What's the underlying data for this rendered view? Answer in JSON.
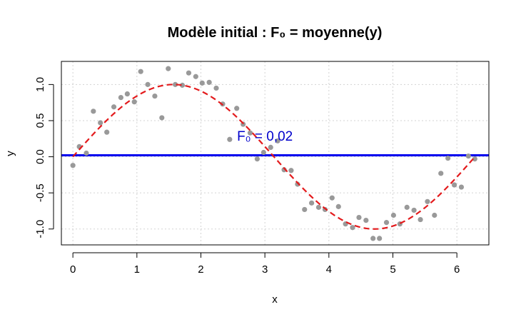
{
  "chart_data": {
    "type": "scatter",
    "title": "Modèle initial : F₀ = moyenne(y)",
    "xlabel": "x",
    "ylabel": "y",
    "xlim": [
      -0.18,
      6.5
    ],
    "ylim": [
      -1.22,
      1.32
    ],
    "x_ticks": [
      0,
      1,
      2,
      3,
      4,
      5,
      6
    ],
    "x_tick_labels": [
      "0",
      "1",
      "2",
      "3",
      "4",
      "5",
      "6"
    ],
    "y_ticks": [
      -1.0,
      -0.5,
      0.0,
      0.5,
      1.0
    ],
    "y_tick_labels": [
      "-1.0",
      "-0.5",
      "0.0",
      "0.5",
      "1.0"
    ],
    "grid": true,
    "colors": {
      "points": "#999999",
      "curve": "#e31a1c",
      "mean_line": "#0000ee",
      "annotation": "#0000cc",
      "grid": "#d3d3d3"
    },
    "annotation": {
      "text": "F₀ = 0,02",
      "x": 3.0,
      "y": 0.29
    },
    "mean_line": {
      "y": 0.02
    },
    "curve": {
      "type": "sin",
      "x_start": 0,
      "x_end": 6.2832
    },
    "series": [
      {
        "type": "scatter",
        "x": [
          0.0,
          0.1,
          0.21,
          0.32,
          0.43,
          0.53,
          0.64,
          0.75,
          0.85,
          0.96,
          1.06,
          1.17,
          1.28,
          1.39,
          1.49,
          1.6,
          1.71,
          1.81,
          1.92,
          2.02,
          2.13,
          2.24,
          2.34,
          2.45,
          2.56,
          2.66,
          2.77,
          2.88,
          2.98,
          3.09,
          3.2,
          3.3,
          3.41,
          3.51,
          3.62,
          3.73,
          3.84,
          3.94,
          4.05,
          4.15,
          4.26,
          4.37,
          4.47,
          4.58,
          4.69,
          4.79,
          4.9,
          5.01,
          5.11,
          5.22,
          5.33,
          5.43,
          5.54,
          5.65,
          5.75,
          5.86,
          5.96,
          6.07,
          6.18,
          6.28
        ],
        "y": [
          -0.12,
          0.14,
          0.05,
          0.63,
          0.47,
          0.34,
          0.69,
          0.82,
          0.87,
          0.76,
          1.18,
          1.0,
          0.84,
          0.54,
          1.22,
          1.0,
          0.99,
          1.16,
          1.11,
          1.02,
          1.03,
          0.95,
          0.73,
          0.24,
          0.67,
          0.45,
          0.33,
          -0.03,
          0.06,
          0.13,
          0.22,
          -0.18,
          -0.19,
          -0.38,
          -0.73,
          -0.64,
          -0.7,
          -0.73,
          -0.57,
          -0.69,
          -0.93,
          -0.98,
          -0.84,
          -0.88,
          -1.13,
          -1.13,
          -0.91,
          -0.81,
          -0.93,
          -0.7,
          -0.74,
          -0.87,
          -0.62,
          -0.81,
          -0.23,
          -0.02,
          -0.39,
          -0.42,
          0.01,
          -0.03
        ]
      }
    ]
  }
}
